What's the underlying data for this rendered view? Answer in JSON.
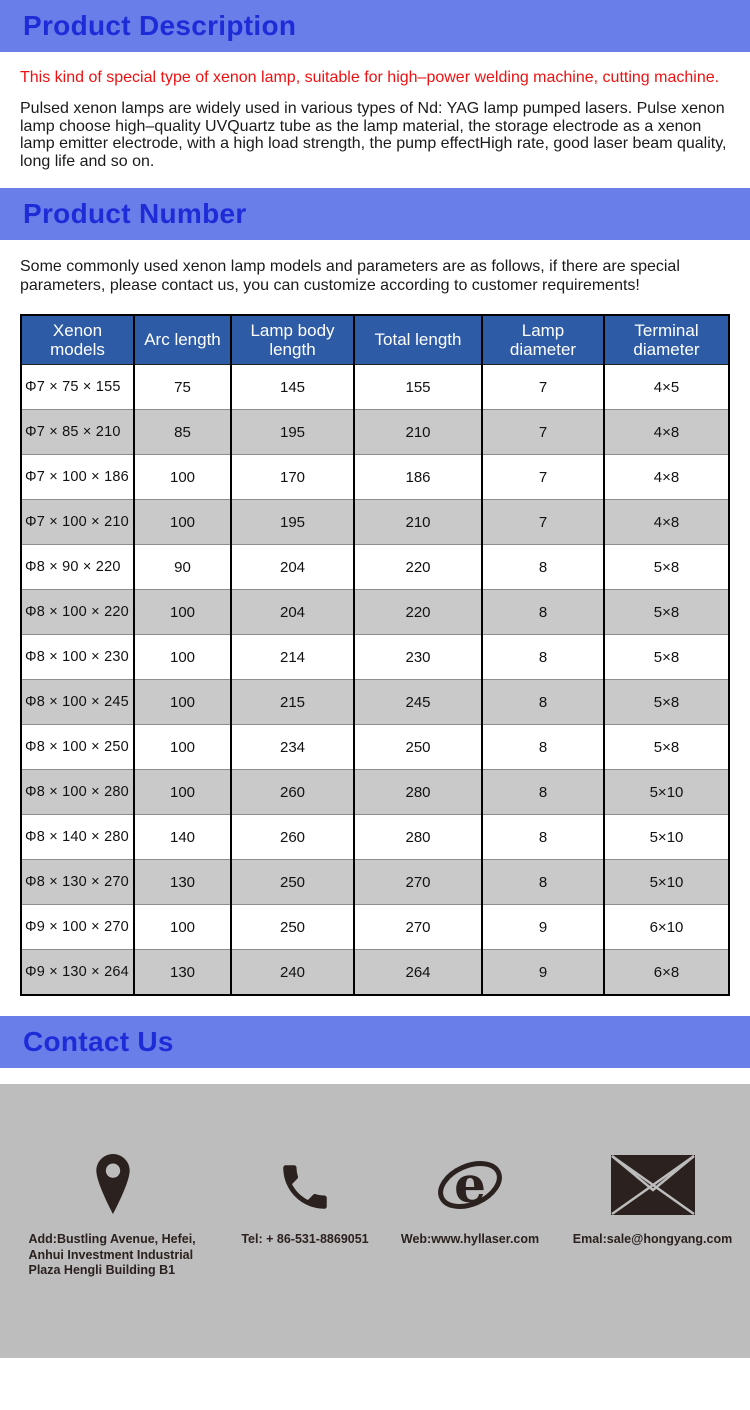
{
  "colors": {
    "band_bg": "#6a7ee9",
    "band_text": "#1e2cd8",
    "table_header_bg": "#2d5ba6",
    "row_alt_gray": "#c9c9c9",
    "footer_bg": "#bdbdbd",
    "highlight_red": "#ee1111",
    "icon_ink": "#2b211e"
  },
  "description": {
    "title": "Product Description",
    "highlight": "This kind of special type of xenon lamp, suitable for high–power welding machine, cutting machine.",
    "body": "Pulsed xenon lamps are widely used in various types of Nd: YAG lamp pumped lasers. Pulse xenon lamp choose high–quality UVQuartz tube as the lamp material, the storage electrode as a xenon lamp emitter electrode, with a high load strength, the pump effectHigh rate, good laser beam quality, long life and so on."
  },
  "product_number": {
    "title": "Product Number",
    "intro": "Some commonly used xenon lamp models and parameters are as follows, if there are special parameters, please contact us, you can customize according to customer requirements!"
  },
  "table": {
    "headers": [
      "Xenon models",
      "Arc length",
      "Lamp body length",
      "Total length",
      "Lamp diameter",
      "Terminal diameter"
    ],
    "rows": [
      [
        "Φ7 × 75 × 155",
        "75",
        "145",
        "155",
        "7",
        "4×5"
      ],
      [
        "Φ7 × 85 × 210",
        "85",
        "195",
        "210",
        "7",
        "4×8"
      ],
      [
        "Φ7 × 100 × 186",
        "100",
        "170",
        "186",
        "7",
        "4×8"
      ],
      [
        "Φ7 × 100 × 210",
        "100",
        "195",
        "210",
        "7",
        "4×8"
      ],
      [
        "Φ8 × 90 × 220",
        "90",
        "204",
        "220",
        "8",
        "5×8"
      ],
      [
        "Φ8 × 100 × 220",
        "100",
        "204",
        "220",
        "8",
        "5×8"
      ],
      [
        "Φ8 × 100 × 230",
        "100",
        "214",
        "230",
        "8",
        "5×8"
      ],
      [
        "Φ8 × 100 × 245",
        "100",
        "215",
        "245",
        "8",
        "5×8"
      ],
      [
        "Φ8 × 100 × 250",
        "100",
        "234",
        "250",
        "8",
        "5×8"
      ],
      [
        "Φ8 × 100 × 280",
        "100",
        "260",
        "280",
        "8",
        "5×10"
      ],
      [
        "Φ8 × 140 × 280",
        "140",
        "260",
        "280",
        "8",
        "5×10"
      ],
      [
        "Φ8 × 130 × 270",
        "130",
        "250",
        "270",
        "8",
        "5×10"
      ],
      [
        "Φ9 × 100 × 270",
        "100",
        "250",
        "270",
        "9",
        "6×10"
      ],
      [
        "Φ9 × 130 × 264",
        "130",
        "240",
        "264",
        "9",
        "6×8"
      ]
    ]
  },
  "contact": {
    "title": "Contact Us",
    "address": "Add:Bustling Avenue, Hefei, Anhui Investment Industrial Plaza Hengli Building B1",
    "tel": "Tel: + 86-531-8869051",
    "web": "Web:www.hyllaser.com",
    "email": "Emal:sale@hongyang.com",
    "icons": [
      "location-pin-icon",
      "phone-icon",
      "internet-explorer-icon",
      "envelope-icon"
    ]
  }
}
